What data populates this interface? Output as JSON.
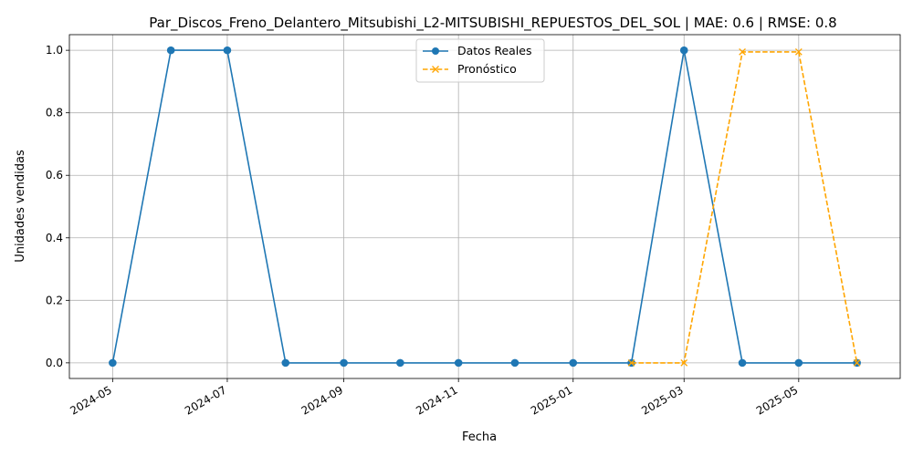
{
  "chart_data": {
    "type": "line",
    "title": "Par_Discos_Freno_Delantero_Mitsubishi_L2-MITSUBISHI_REPUESTOS_DEL_SOL | MAE: 0.6 | RMSE: 0.8",
    "xlabel": "Fecha",
    "ylabel": "Unidades vendidas",
    "x_ticks": [
      "2024-05",
      "2024-07",
      "2024-09",
      "2024-11",
      "2025-01",
      "2025-03",
      "2025-05"
    ],
    "y_ticks": [
      "0.0",
      "0.2",
      "0.4",
      "0.6",
      "0.8",
      "1.0"
    ],
    "ylim": [
      -0.05,
      1.05
    ],
    "xlim": [
      "2024-04-08",
      "2025-06-24"
    ],
    "grid": true,
    "legend_position": "top-center",
    "series": [
      {
        "name": "Datos Reales",
        "color": "#1f77b4",
        "line_style": "solid",
        "marker": "circle",
        "x": [
          "2024-05-01",
          "2024-06-01",
          "2024-07-01",
          "2024-08-01",
          "2024-09-01",
          "2024-10-01",
          "2024-11-01",
          "2024-12-01",
          "2025-01-01",
          "2025-02-01",
          "2025-03-01",
          "2025-04-01",
          "2025-05-01",
          "2025-06-01"
        ],
        "values": [
          0,
          1,
          1,
          0,
          0,
          0,
          0,
          0,
          0,
          0,
          1,
          0,
          0,
          0
        ]
      },
      {
        "name": "Pronóstico",
        "color": "#ffa500",
        "line_style": "dashed",
        "marker": "x",
        "x": [
          "2025-02-01",
          "2025-03-01",
          "2025-04-01",
          "2025-05-01",
          "2025-06-01"
        ],
        "values": [
          0,
          0,
          0.995,
          0.995,
          0
        ]
      }
    ]
  }
}
